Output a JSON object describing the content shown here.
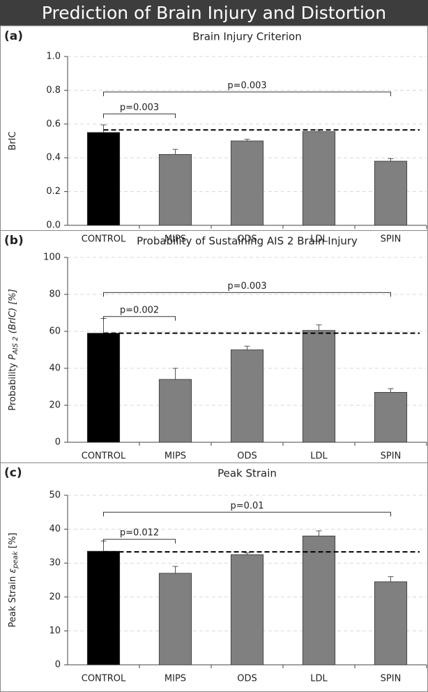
{
  "header": {
    "title": "Prediction of Brain Injury and Distortion"
  },
  "chart_data": [
    {
      "type": "bar",
      "panel": "(a)",
      "title": "Brain Injury Criterion",
      "y_label": [
        {
          "text": "BrIC",
          "style": "normal"
        }
      ],
      "categories": [
        "CONTROL",
        "MIPS",
        "ODS",
        "LDL",
        "SPIN"
      ],
      "values": [
        0.55,
        0.42,
        0.5,
        0.555,
        0.38
      ],
      "errors": [
        0.045,
        0.03,
        0.01,
        0.01,
        0.015
      ],
      "colors": [
        "#000000",
        "#808080",
        "#808080",
        "#808080",
        "#808080"
      ],
      "reference": 0.565,
      "annotations": [
        {
          "text": "p=0.003",
          "from": "CONTROL",
          "to": "MIPS",
          "y": 0.66
        },
        {
          "text": "p=0.003",
          "from": "CONTROL",
          "to": "SPIN",
          "y": 0.79
        }
      ],
      "ylim": [
        0,
        1
      ],
      "yticks": [
        {
          "value": 0,
          "label": "0.0"
        },
        {
          "value": 0.2,
          "label": "0.2"
        },
        {
          "value": 0.4,
          "label": "0.4"
        },
        {
          "value": 0.6,
          "label": "0.6"
        },
        {
          "value": 0.8,
          "label": "0.8"
        },
        {
          "value": 1,
          "label": "1.0"
        }
      ],
      "grid": true
    },
    {
      "type": "bar",
      "panel": "(b)",
      "title": "Probability of Sustaining AIS 2 Brain Injury",
      "y_label": [
        {
          "text": "Probability ",
          "style": "normal"
        },
        {
          "text": "P",
          "style": "italic"
        },
        {
          "text": "AIS 2",
          "style": "sub"
        },
        {
          "text": " (BrIC) [%]",
          "style": "italic-after"
        }
      ],
      "categories": [
        "CONTROL",
        "MIPS",
        "ODS",
        "LDL",
        "SPIN"
      ],
      "values": [
        59,
        34,
        50,
        60.5,
        27
      ],
      "errors": [
        8,
        6,
        2,
        3,
        2
      ],
      "colors": [
        "#000000",
        "#808080",
        "#808080",
        "#808080",
        "#808080"
      ],
      "reference": 59,
      "annotations": [
        {
          "text": "p=0.002",
          "from": "CONTROL",
          "to": "MIPS",
          "y": 68
        },
        {
          "text": "p=0.003",
          "from": "CONTROL",
          "to": "SPIN",
          "y": 81
        }
      ],
      "ylim": [
        0,
        100
      ],
      "yticks": [
        0,
        20,
        40,
        60,
        80,
        100
      ],
      "grid": true
    },
    {
      "type": "bar",
      "panel": "(c)",
      "title": "Peak Strain",
      "y_label": [
        {
          "text": "Peak Strain ",
          "style": "normal"
        },
        {
          "text": "ε",
          "style": "italic"
        },
        {
          "text": "peak",
          "style": "sub"
        },
        {
          "text": " [%]",
          "style": "normal-after"
        }
      ],
      "categories": [
        "CONTROL",
        "MIPS",
        "ODS",
        "LDL",
        "SPIN"
      ],
      "values": [
        33.5,
        27,
        32.5,
        38,
        24.5
      ],
      "errors": [
        3,
        2,
        0.5,
        1.5,
        1.5
      ],
      "colors": [
        "#000000",
        "#808080",
        "#808080",
        "#808080",
        "#808080"
      ],
      "reference": 33.3,
      "annotations": [
        {
          "text": "p=0.012",
          "from": "CONTROL",
          "to": "MIPS",
          "y": 37
        },
        {
          "text": "p=0.01",
          "from": "CONTROL",
          "to": "SPIN",
          "y": 45
        }
      ],
      "ylim": [
        0,
        50
      ],
      "yticks": [
        0,
        10,
        20,
        30,
        40,
        50
      ],
      "grid": true
    }
  ]
}
